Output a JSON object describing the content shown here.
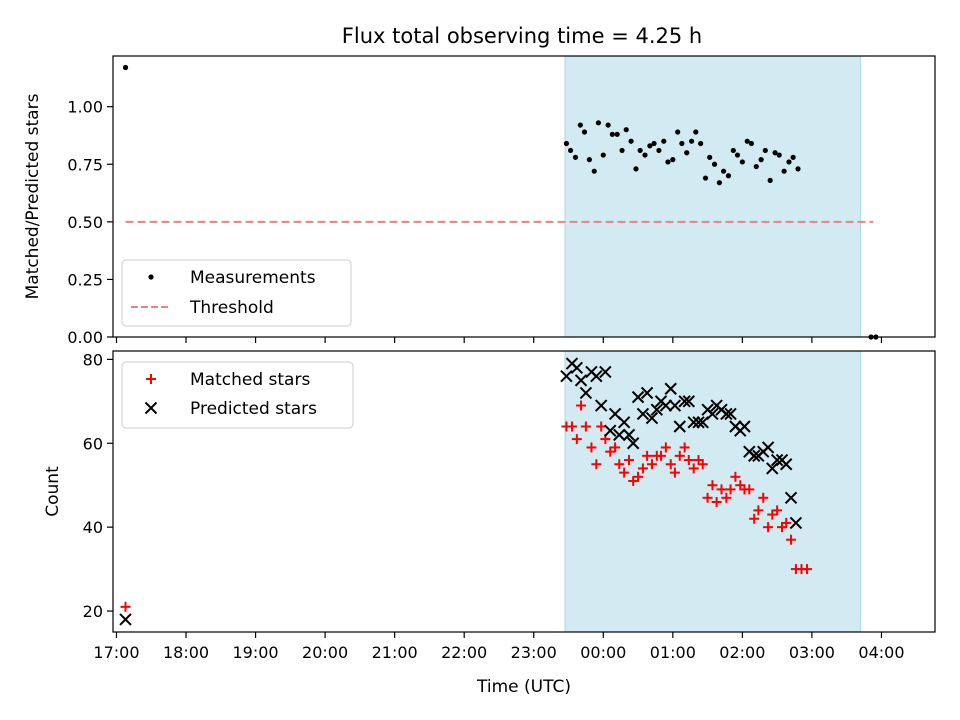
{
  "figure": {
    "title": "Flux total observing time = 4.25 h",
    "xlabel": "Time (UTC)",
    "x_tick_labels": [
      "17:00",
      "18:00",
      "19:00",
      "20:00",
      "21:00",
      "22:00",
      "23:00",
      "00:00",
      "01:00",
      "02:00",
      "03:00",
      "04:00"
    ],
    "x_tick_hours": [
      17,
      18,
      19,
      20,
      21,
      22,
      23,
      24,
      25,
      26,
      27,
      28
    ],
    "xlim_hours": [
      16.95,
      28.77
    ],
    "shaded_interval_hours": [
      23.45,
      27.7
    ],
    "shade_color": "#add8e6"
  },
  "chart_data": [
    {
      "type": "scatter",
      "xlabel": "",
      "ylabel": "Matched/Predicted stars",
      "ylim": [
        0,
        1.22
      ],
      "y_ticks": [
        0.0,
        0.25,
        0.5,
        0.75,
        1.0
      ],
      "y_tick_labels": [
        "0.00",
        "0.25",
        "0.50",
        "0.75",
        "1.00"
      ],
      "legend_position": "lower-left",
      "series": [
        {
          "name": "Measurements",
          "marker": "dot",
          "color": "#000000",
          "points": [
            [
              17.13,
              1.17
            ],
            [
              23.47,
              0.84
            ],
            [
              23.53,
              0.81
            ],
            [
              23.6,
              0.78
            ],
            [
              23.67,
              0.92
            ],
            [
              23.73,
              0.89
            ],
            [
              23.8,
              0.77
            ],
            [
              23.87,
              0.72
            ],
            [
              23.93,
              0.93
            ],
            [
              24.0,
              0.79
            ],
            [
              24.07,
              0.92
            ],
            [
              24.13,
              0.88
            ],
            [
              24.2,
              0.88
            ],
            [
              24.27,
              0.81
            ],
            [
              24.33,
              0.9
            ],
            [
              24.4,
              0.85
            ],
            [
              24.47,
              0.73
            ],
            [
              24.53,
              0.81
            ],
            [
              24.6,
              0.79
            ],
            [
              24.67,
              0.83
            ],
            [
              24.73,
              0.84
            ],
            [
              24.8,
              0.81
            ],
            [
              24.87,
              0.85
            ],
            [
              24.93,
              0.76
            ],
            [
              25.0,
              0.77
            ],
            [
              25.07,
              0.89
            ],
            [
              25.13,
              0.84
            ],
            [
              25.2,
              0.8
            ],
            [
              25.27,
              0.85
            ],
            [
              25.33,
              0.89
            ],
            [
              25.4,
              0.84
            ],
            [
              25.47,
              0.69
            ],
            [
              25.53,
              0.78
            ],
            [
              25.6,
              0.75
            ],
            [
              25.67,
              0.67
            ],
            [
              25.73,
              0.72
            ],
            [
              25.8,
              0.7
            ],
            [
              25.87,
              0.81
            ],
            [
              25.93,
              0.79
            ],
            [
              26.0,
              0.76
            ],
            [
              26.07,
              0.85
            ],
            [
              26.13,
              0.84
            ],
            [
              26.2,
              0.74
            ],
            [
              26.27,
              0.77
            ],
            [
              26.33,
              0.81
            ],
            [
              26.4,
              0.68
            ],
            [
              26.47,
              0.8
            ],
            [
              26.53,
              0.79
            ],
            [
              26.6,
              0.72
            ],
            [
              26.67,
              0.76
            ],
            [
              26.73,
              0.78
            ],
            [
              26.8,
              0.73
            ],
            [
              27.85,
              0.0
            ],
            [
              27.92,
              0.0
            ]
          ]
        },
        {
          "name": "Threshold",
          "marker": "dashed-line",
          "color": "#f08080",
          "points": [
            [
              17.13,
              0.5
            ],
            [
              27.88,
              0.5
            ]
          ]
        }
      ]
    },
    {
      "type": "scatter",
      "xlabel": "Time (UTC)",
      "ylabel": "Count",
      "ylim": [
        15,
        82
      ],
      "y_ticks": [
        20,
        40,
        60,
        80
      ],
      "y_tick_labels": [
        "20",
        "40",
        "60",
        "80"
      ],
      "legend_position": "upper-left",
      "series": [
        {
          "name": "Matched stars",
          "marker": "plus",
          "color": "#ff0000",
          "points": [
            [
              17.13,
              21
            ],
            [
              23.47,
              64
            ],
            [
              23.55,
              64
            ],
            [
              23.62,
              61
            ],
            [
              23.68,
              69
            ],
            [
              23.75,
              64
            ],
            [
              23.83,
              59
            ],
            [
              23.9,
              55
            ],
            [
              23.97,
              64
            ],
            [
              24.03,
              61
            ],
            [
              24.1,
              58
            ],
            [
              24.17,
              59
            ],
            [
              24.23,
              55
            ],
            [
              24.3,
              53
            ],
            [
              24.37,
              56
            ],
            [
              24.43,
              51
            ],
            [
              24.5,
              52
            ],
            [
              24.57,
              54
            ],
            [
              24.63,
              57
            ],
            [
              24.7,
              55
            ],
            [
              24.77,
              57
            ],
            [
              24.83,
              57
            ],
            [
              24.9,
              59
            ],
            [
              24.97,
              55
            ],
            [
              25.03,
              53
            ],
            [
              25.1,
              57
            ],
            [
              25.17,
              59
            ],
            [
              25.23,
              56
            ],
            [
              25.3,
              54
            ],
            [
              25.37,
              56
            ],
            [
              25.43,
              55
            ],
            [
              25.5,
              47
            ],
            [
              25.57,
              50
            ],
            [
              25.63,
              46
            ],
            [
              25.7,
              49
            ],
            [
              25.77,
              47
            ],
            [
              25.83,
              49
            ],
            [
              25.9,
              52
            ],
            [
              25.97,
              50
            ],
            [
              26.03,
              49
            ],
            [
              26.1,
              49
            ],
            [
              26.17,
              42
            ],
            [
              26.23,
              44
            ],
            [
              26.3,
              47
            ],
            [
              26.37,
              40
            ],
            [
              26.43,
              43
            ],
            [
              26.5,
              44
            ],
            [
              26.57,
              40
            ],
            [
              26.63,
              41
            ],
            [
              26.7,
              37
            ],
            [
              26.77,
              30
            ],
            [
              26.85,
              30
            ],
            [
              26.93,
              30
            ]
          ]
        },
        {
          "name": "Predicted stars",
          "marker": "x",
          "color": "#000000",
          "points": [
            [
              17.13,
              18
            ],
            [
              23.47,
              76
            ],
            [
              23.55,
              79
            ],
            [
              23.62,
              78
            ],
            [
              23.68,
              75
            ],
            [
              23.75,
              72
            ],
            [
              23.83,
              77
            ],
            [
              23.9,
              76
            ],
            [
              23.97,
              69
            ],
            [
              24.03,
              77
            ],
            [
              24.1,
              63
            ],
            [
              24.17,
              67
            ],
            [
              24.23,
              62
            ],
            [
              24.3,
              65
            ],
            [
              24.37,
              62
            ],
            [
              24.43,
              60
            ],
            [
              24.5,
              71
            ],
            [
              24.57,
              67
            ],
            [
              24.63,
              72
            ],
            [
              24.7,
              66
            ],
            [
              24.77,
              68
            ],
            [
              24.83,
              70
            ],
            [
              24.9,
              69
            ],
            [
              24.97,
              73
            ],
            [
              25.03,
              69
            ],
            [
              25.1,
              64
            ],
            [
              25.17,
              70
            ],
            [
              25.23,
              70
            ],
            [
              25.3,
              65
            ],
            [
              25.37,
              65
            ],
            [
              25.43,
              65
            ],
            [
              25.5,
              68
            ],
            [
              25.57,
              67
            ],
            [
              25.63,
              69
            ],
            [
              25.7,
              68
            ],
            [
              25.77,
              67
            ],
            [
              25.83,
              67
            ],
            [
              25.9,
              64
            ],
            [
              25.97,
              63
            ],
            [
              26.03,
              64
            ],
            [
              26.1,
              58
            ],
            [
              26.17,
              57
            ],
            [
              26.23,
              57
            ],
            [
              26.3,
              58
            ],
            [
              26.37,
              59
            ],
            [
              26.43,
              54
            ],
            [
              26.5,
              56
            ],
            [
              26.57,
              56
            ],
            [
              26.63,
              55
            ],
            [
              26.7,
              47
            ],
            [
              26.77,
              41
            ]
          ]
        }
      ]
    }
  ]
}
